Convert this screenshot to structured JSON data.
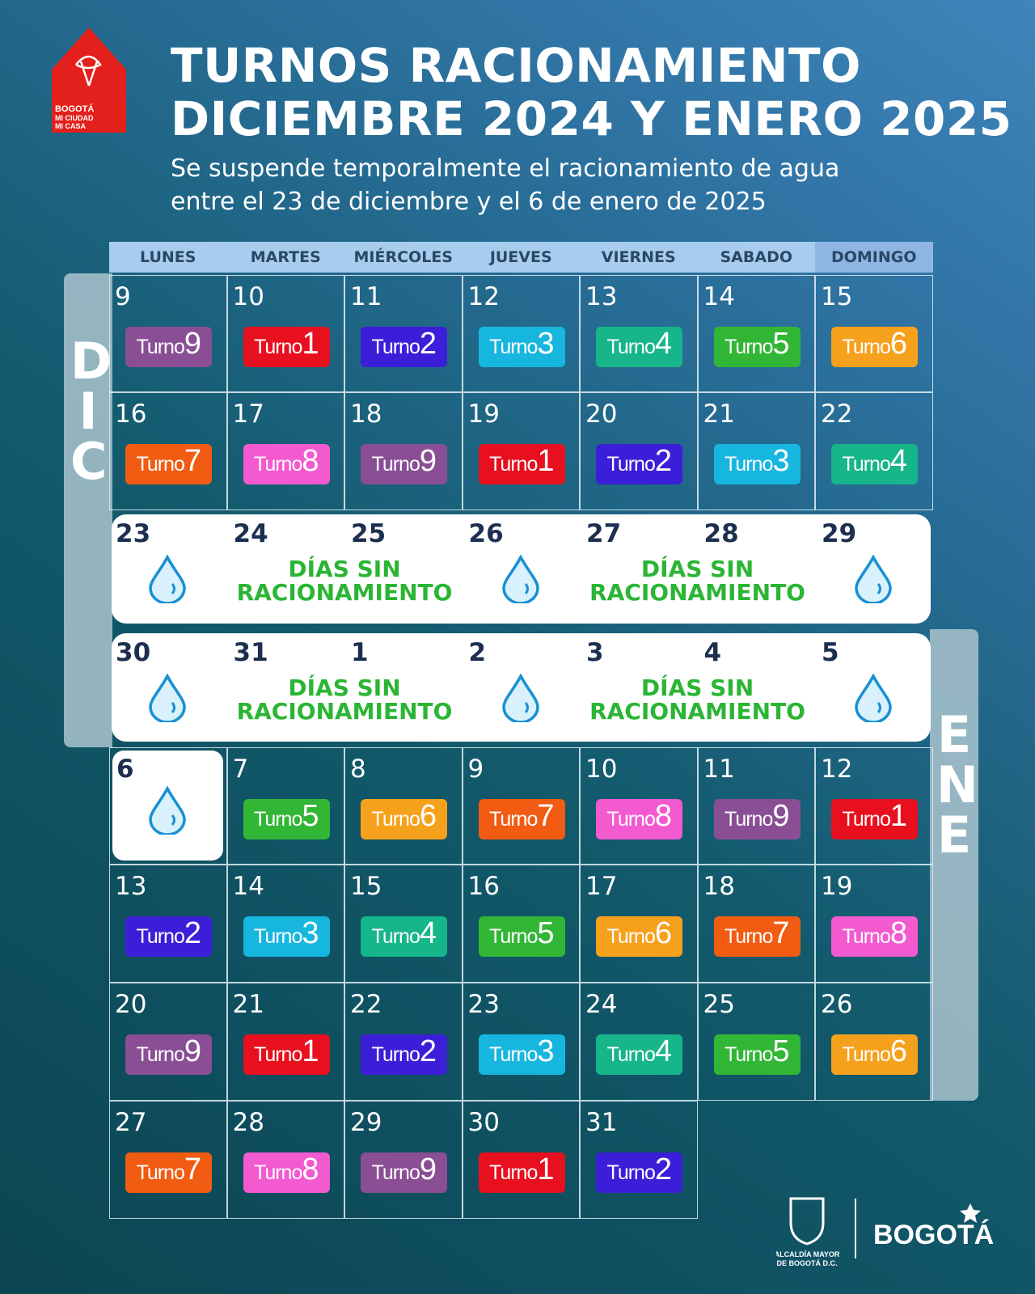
{
  "logo": {
    "lines": [
      "BOGOTÁ",
      "MI CIUDAD",
      "MI CASA"
    ]
  },
  "header": {
    "title": [
      "TURNOS RACIONAMIENTO",
      "DICIEMBRE 2024 Y ENERO 2025"
    ],
    "subtitle": [
      "Se suspende temporalmente el racionamiento de agua",
      "entre el 23 de diciembre y el 6 de enero de 2025"
    ]
  },
  "weekdays": [
    "LUNES",
    "MARTES",
    "MIÉRCOLES",
    "JUEVES",
    "VIERNES",
    "SABADO",
    "DOMINGO"
  ],
  "months": [
    "DIC",
    "ENE"
  ],
  "turno_colors": {
    "1": "#e8101e",
    "2": "#3b1fd8",
    "3": "#17b6df",
    "4": "#16b58a",
    "5": "#32b636",
    "6": "#f6a11c",
    "7": "#f25b12",
    "8": "#f35ad0",
    "9": "#8a4e95"
  },
  "weeks": [
    {
      "kind": "days",
      "cells": [
        {
          "day": 9,
          "word": "Turno",
          "turno": 9
        },
        {
          "day": 10,
          "word": "Turno",
          "turno": 1
        },
        {
          "day": 11,
          "word": "Turno",
          "turno": 2
        },
        {
          "day": 12,
          "word": "Turno",
          "turno": 3
        },
        {
          "day": 13,
          "word": "Turno",
          "turno": 4
        },
        {
          "day": 14,
          "word": "Turno",
          "turno": 5
        },
        {
          "day": 15,
          "word": "Turno",
          "turno": 6
        }
      ]
    },
    {
      "kind": "days",
      "cells": [
        {
          "day": 16,
          "word": "Turno",
          "turno": 7
        },
        {
          "day": 17,
          "word": "Turno",
          "turno": 8
        },
        {
          "day": 18,
          "word": "Turno",
          "turno": 9
        },
        {
          "day": 19,
          "word": "Turno",
          "turno": 1
        },
        {
          "day": 20,
          "word": "Turno",
          "turno": 2
        },
        {
          "day": 21,
          "word": "Turno",
          "turno": 3
        },
        {
          "day": 22,
          "word": "Turno",
          "turno": 4
        }
      ]
    },
    {
      "kind": "banner",
      "days": [
        23,
        24,
        25,
        26,
        27,
        28,
        29
      ],
      "notices": [
        [
          "DÍAS SIN",
          "RACIONAMIENTO"
        ],
        [
          "DÍAS SIN",
          "RACIONAMIENTO"
        ]
      ]
    },
    {
      "kind": "banner",
      "days": [
        30,
        31,
        1,
        2,
        3,
        4,
        5
      ],
      "notices": [
        [
          "DÍAS SIN",
          "RACIONAMIENTO"
        ],
        [
          "DÍAS SIN",
          "RACIONAMIENTO"
        ]
      ]
    },
    {
      "kind": "days",
      "cells": [
        {
          "day": 6
        },
        {
          "day": 7,
          "word": "Turno",
          "turno": 5
        },
        {
          "day": 8,
          "word": "Turno",
          "turno": 6
        },
        {
          "day": 9,
          "word": "Turno",
          "turno": 7
        },
        {
          "day": 10,
          "word": "Turno",
          "turno": 8
        },
        {
          "day": 11,
          "word": "Turno",
          "turno": 9
        },
        {
          "day": 12,
          "word": "Turno",
          "turno": 1
        }
      ]
    },
    {
      "kind": "days",
      "cells": [
        {
          "day": 13,
          "word": "Turno",
          "turno": 2
        },
        {
          "day": 14,
          "word": "Turno",
          "turno": 3
        },
        {
          "day": 15,
          "word": "Turno",
          "turno": 4
        },
        {
          "day": 16,
          "word": "Turno",
          "turno": 5
        },
        {
          "day": 17,
          "word": "Turno",
          "turno": 6
        },
        {
          "day": 18,
          "word": "Turno",
          "turno": 7
        },
        {
          "day": 19,
          "word": "Turno",
          "turno": 8
        }
      ]
    },
    {
      "kind": "days",
      "cells": [
        {
          "day": 20,
          "word": "Turno",
          "turno": 9
        },
        {
          "day": 21,
          "word": "Turno",
          "turno": 1
        },
        {
          "day": 22,
          "word": "Turno",
          "turno": 2
        },
        {
          "day": 23,
          "word": "Turno",
          "turno": 3
        },
        {
          "day": 24,
          "word": "Turno",
          "turno": 4
        },
        {
          "day": 25,
          "word": "Turno",
          "turno": 5
        },
        {
          "day": 26,
          "word": "Turno",
          "turno": 6
        }
      ]
    },
    {
      "kind": "days",
      "cells": [
        {
          "day": 27,
          "word": "Turno",
          "turno": 7
        },
        {
          "day": 28,
          "word": "Turno",
          "turno": 8
        },
        {
          "day": 29,
          "word": "Turno",
          "turno": 9
        },
        {
          "day": 30,
          "word": "Turno",
          "turno": 1
        },
        {
          "day": 31,
          "word": "Turno",
          "turno": 2
        }
      ]
    }
  ],
  "footer": {
    "seal": [
      "ALCALDÍA MAYOR",
      "DE BOGOTÁ D.C."
    ],
    "brand": "BOGOTÁ"
  }
}
